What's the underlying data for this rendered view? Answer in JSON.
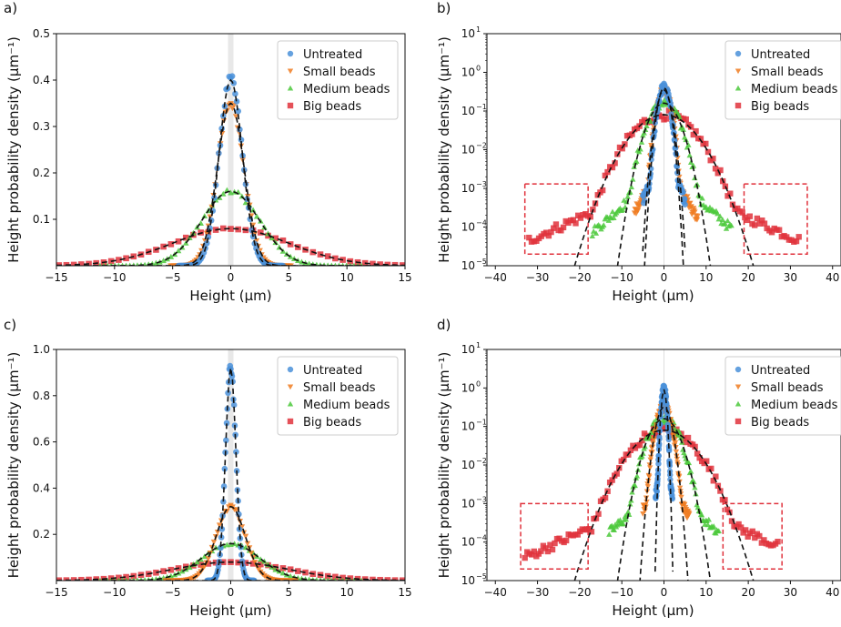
{
  "chart_data": [
    {
      "panel": "a)",
      "type": "scatter",
      "yscale": "linear",
      "xlabel": "Height (μm)",
      "ylabel": "Height probability density (μm⁻¹)",
      "xlim": [
        -15,
        15
      ],
      "ylim": [
        0,
        0.5
      ],
      "xticks": [
        -15,
        -10,
        -5,
        0,
        5,
        10,
        15
      ],
      "xtick_labels": [
        "−15",
        "−10",
        "−5",
        "0",
        "5",
        "10",
        "15"
      ],
      "yticks": [
        0.1,
        0.2,
        0.3,
        0.4,
        0.5
      ],
      "ytick_labels": [
        "0.1",
        "0.2",
        "0.3",
        "0.4",
        "0.5"
      ],
      "grid": false,
      "legend_position": "top-right",
      "series": [
        {
          "name": "Untreated",
          "marker": "circle",
          "peak": 0.4,
          "mean": 0,
          "sigma": 1.0
        },
        {
          "name": "Small beads",
          "marker": "triangle-down",
          "peak": 0.35,
          "mean": 0,
          "sigma": 1.15
        },
        {
          "name": "Medium beads",
          "marker": "triangle-up",
          "peak": 0.16,
          "mean": 0,
          "sigma": 2.5
        },
        {
          "name": "Big beads",
          "marker": "square",
          "peak": 0.08,
          "mean": 0,
          "sigma": 5.0
        }
      ],
      "fit_lines": "dashed black gaussian fits"
    },
    {
      "panel": "b)",
      "type": "scatter",
      "yscale": "log",
      "xlabel": "Height (μm)",
      "ylabel": "Height probability density (μm⁻¹)",
      "xlim": [
        -42,
        42
      ],
      "ylim": [
        1e-05,
        10
      ],
      "xticks": [
        -40,
        -30,
        -20,
        -10,
        0,
        10,
        20,
        30,
        40
      ],
      "xtick_labels": [
        "−40",
        "−30",
        "−20",
        "−10",
        "0",
        "10",
        "20",
        "30",
        "40"
      ],
      "ytick_labels": [
        "10",
        "10",
        "10",
        "10",
        "10",
        "10",
        "10"
      ],
      "ytick_exponents": [
        "−5",
        "−4",
        "−3",
        "−2",
        "−1",
        "0",
        "1"
      ],
      "grid": false,
      "legend_position": "top-right",
      "series": [
        {
          "name": "Untreated",
          "marker": "circle",
          "peak": 0.4,
          "sigma": 1.0,
          "x_range": [
            -5,
            5
          ]
        },
        {
          "name": "Small beads",
          "marker": "triangle-down",
          "peak": 0.35,
          "sigma": 1.15,
          "x_range": [
            -7,
            8
          ]
        },
        {
          "name": "Medium beads",
          "marker": "triangle-up",
          "peak": 0.16,
          "sigma": 2.5,
          "x_range": [
            -17,
            16
          ]
        },
        {
          "name": "Big beads",
          "marker": "square",
          "peak": 0.08,
          "sigma": 5.0,
          "x_range": [
            -32,
            32
          ]
        }
      ],
      "highlight_boxes_x": [
        [
          -33,
          -18
        ],
        [
          19,
          34
        ]
      ],
      "highlight_boxes_y": [
        2e-05,
        0.0013
      ]
    },
    {
      "panel": "c)",
      "type": "scatter",
      "yscale": "linear",
      "xlabel": "Height (μm)",
      "ylabel": "Height probability density (μm⁻¹)",
      "xlim": [
        -15,
        15
      ],
      "ylim": [
        0,
        1.0
      ],
      "xticks": [
        -15,
        -10,
        -5,
        0,
        5,
        10,
        15
      ],
      "xtick_labels": [
        "−15",
        "−10",
        "−5",
        "0",
        "5",
        "10",
        "15"
      ],
      "yticks": [
        0.2,
        0.4,
        0.6,
        0.8,
        1.0
      ],
      "ytick_labels": [
        "0.2",
        "0.4",
        "0.6",
        "0.8",
        "1.0"
      ],
      "grid": false,
      "legend_position": "top-right",
      "series": [
        {
          "name": "Untreated",
          "marker": "circle",
          "peak": 0.92,
          "mean": 0,
          "sigma": 0.45
        },
        {
          "name": "Small beads",
          "marker": "triangle-down",
          "peak": 0.32,
          "mean": 0,
          "sigma": 1.25
        },
        {
          "name": "Medium beads",
          "marker": "triangle-up",
          "peak": 0.16,
          "mean": 0,
          "sigma": 2.5
        },
        {
          "name": "Big beads",
          "marker": "square",
          "peak": 0.08,
          "mean": 0,
          "sigma": 5.0
        }
      ],
      "fit_lines": "dashed black gaussian fits"
    },
    {
      "panel": "d)",
      "type": "scatter",
      "yscale": "log",
      "xlabel": "Height (μm)",
      "ylabel": "Height probability density (μm⁻¹)",
      "xlim": [
        -42,
        42
      ],
      "ylim": [
        1e-05,
        10
      ],
      "xticks": [
        -40,
        -30,
        -20,
        -10,
        0,
        10,
        20,
        30,
        40
      ],
      "xtick_labels": [
        "−40",
        "−30",
        "−20",
        "−10",
        "0",
        "10",
        "20",
        "30",
        "40"
      ],
      "ytick_labels": [
        "10",
        "10",
        "10",
        "10",
        "10",
        "10",
        "10"
      ],
      "ytick_exponents": [
        "−5",
        "−4",
        "−3",
        "−2",
        "−1",
        "0",
        "1"
      ],
      "grid": false,
      "legend_position": "top-right",
      "series": [
        {
          "name": "Untreated",
          "marker": "circle",
          "peak": 0.92,
          "sigma": 0.45,
          "x_range": [
            -2,
            2
          ]
        },
        {
          "name": "Small beads",
          "marker": "triangle-down",
          "peak": 0.32,
          "sigma": 1.25,
          "x_range": [
            -5,
            6
          ]
        },
        {
          "name": "Medium beads",
          "marker": "triangle-up",
          "peak": 0.16,
          "sigma": 2.5,
          "x_range": [
            -13,
            13
          ]
        },
        {
          "name": "Big beads",
          "marker": "square",
          "peak": 0.08,
          "sigma": 5.0,
          "x_range": [
            -33,
            27
          ]
        }
      ],
      "highlight_boxes_x": [
        [
          -34,
          -18
        ],
        [
          14,
          28
        ]
      ],
      "highlight_boxes_y": [
        2e-05,
        0.001
      ]
    }
  ],
  "colors": {
    "Untreated": "#4a90d9",
    "Small beads": "#f07c22",
    "Medium beads": "#4cc93c",
    "Big beads": "#e0323c",
    "fit": "#111111",
    "highlight_box": "#e0323c"
  }
}
